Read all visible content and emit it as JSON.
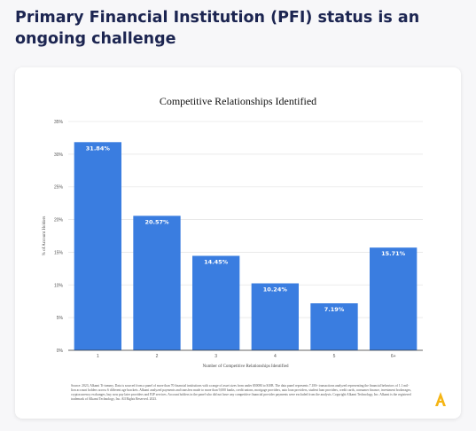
{
  "page": {
    "headline": "Primary Financial Institution (PFI) status is an ongoing challenge"
  },
  "card": {
    "footnote": "Source: 2023, Alkami Tt-tommy. Data is sourced from a panel of more than 70 financial institutions with a range of asset sizes from under $500M to $10B. The data panel represents 7.1M+ transactions analyzed representing the financial behaviors of 1.1 mil-lion account holders across 6 different age brackets. Alkami analyzed payments and transfers made to more than 9,000 banks, credit unions, mortgage providers, auto loan providers, student loan providers, credit cards, consumer finance, investment brokerages, cryptocurrency exchanges, buy now pay later providers and P2P services. Account holders in the panel who did not have any competitive financial provider payments were excluded from the analysis. Copyright Alkami Technology, Inc. Alkami is the registered trademark of Alkami Technology, Inc. All Rights Reserved. 2023.",
    "logo_icon": "alkami-logo-icon",
    "logo_color": "#f5b514"
  },
  "chart_data": {
    "type": "bar",
    "title": "Competitive Relationships Identified",
    "xlabel": "Number of Competitive Relationships Identified",
    "ylabel": "% of Account Holders",
    "categories": [
      "1",
      "2",
      "3",
      "4",
      "5",
      "6+"
    ],
    "values": [
      31.84,
      20.57,
      14.45,
      10.24,
      7.19,
      15.71
    ],
    "value_labels": [
      "31.84%",
      "20.57%",
      "14.45%",
      "10.24%",
      "7.19%",
      "15.71%"
    ],
    "ylim": [
      0,
      35
    ],
    "yticks": [
      0,
      5,
      10,
      15,
      20,
      25,
      30,
      35
    ],
    "ytick_labels": [
      "0%",
      "5%",
      "10%",
      "15%",
      "20%",
      "25%",
      "30%",
      "35%"
    ],
    "grid": true,
    "bar_color": "#3a7de0",
    "grid_color": "#e6e6e6"
  }
}
